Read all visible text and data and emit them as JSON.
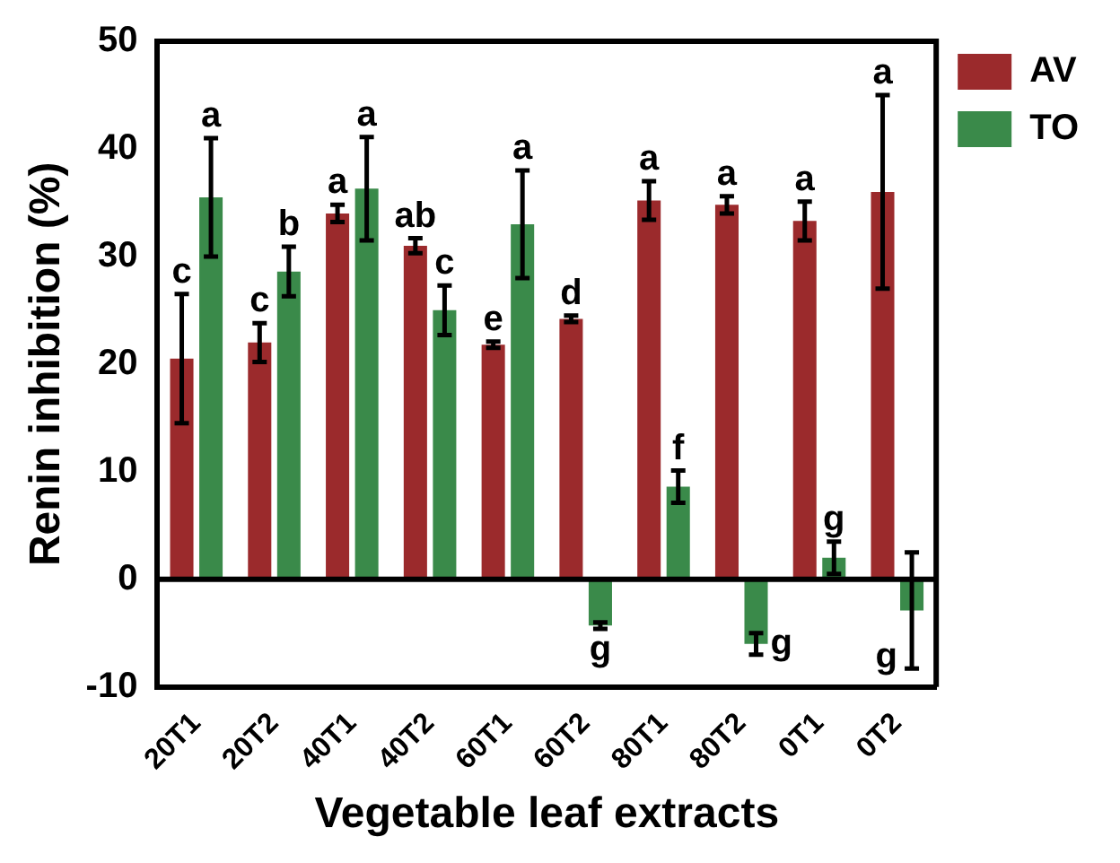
{
  "chart_data": {
    "type": "bar",
    "xlabel": "Vegetable leaf extracts",
    "ylabel": "Renin inhibition (%)",
    "categories": [
      "20T1",
      "20T2",
      "40T1",
      "40T2",
      "60T1",
      "60T2",
      "80T1",
      "80T2",
      "0T1",
      "0T2"
    ],
    "series": [
      {
        "name": "AV",
        "color": "#9b2a2c",
        "values": [
          20.5,
          22,
          34,
          31,
          21.8,
          24.2,
          35.2,
          34.8,
          33.3,
          36
        ],
        "errors": [
          6,
          1.8,
          0.8,
          0.7,
          0.3,
          0.3,
          1.8,
          0.8,
          1.8,
          9
        ],
        "value_labels": [
          "c",
          "c",
          "a",
          "ab",
          "e",
          "d",
          "a",
          "a",
          "a",
          "a"
        ]
      },
      {
        "name": "TO",
        "color": "#3a8a4a",
        "values": [
          35.5,
          28.6,
          36.3,
          25,
          33,
          -4.3,
          8.6,
          -6,
          2,
          -2.9
        ],
        "errors": [
          5.5,
          2.3,
          4.8,
          2.3,
          5,
          0.3,
          1.5,
          1,
          1.5,
          5.4
        ],
        "value_labels": [
          "a",
          "b",
          "a",
          "c",
          "a",
          "g",
          "f",
          "g",
          "g",
          "g"
        ]
      }
    ],
    "ylim": [
      -10,
      50
    ],
    "yticks": [
      -10,
      0,
      10,
      20,
      30,
      40,
      50
    ],
    "grid": false,
    "legend": "top right",
    "ref_lines": [
      {
        "axis": "y",
        "value": 0,
        "color": "#000000"
      }
    ]
  }
}
